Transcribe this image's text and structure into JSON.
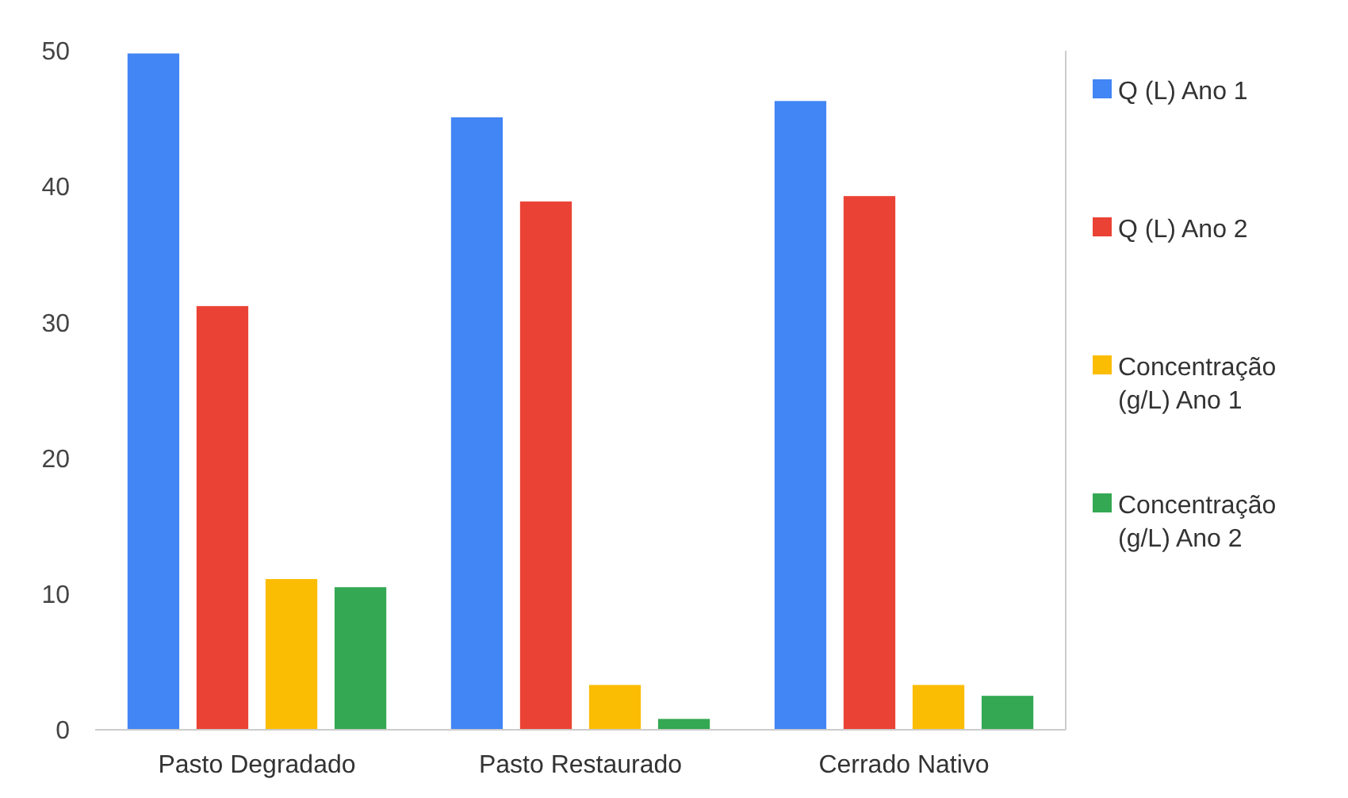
{
  "chart_data": {
    "type": "bar",
    "categories": [
      "Pasto Degradado",
      "Pasto Restaurado",
      "Cerrado Nativo"
    ],
    "series": [
      {
        "name": "Q (L) Ano 1",
        "color": "#4285f4",
        "values": [
          49.8,
          45.1,
          46.3
        ]
      },
      {
        "name": "Q (L) Ano 2",
        "color": "#ea4335",
        "values": [
          31.2,
          38.9,
          39.3
        ]
      },
      {
        "name": "Concentração (g/L) Ano 1",
        "color": "#fbbc04",
        "values": [
          11.1,
          3.3,
          3.3
        ]
      },
      {
        "name": "Concentração (g/L) Ano 2",
        "color": "#34a853",
        "values": [
          10.5,
          0.8,
          2.5
        ]
      }
    ],
    "ylim": [
      0,
      50
    ],
    "yticks": [
      0,
      10,
      20,
      30,
      40,
      50
    ],
    "grid": false,
    "legend": "right"
  }
}
